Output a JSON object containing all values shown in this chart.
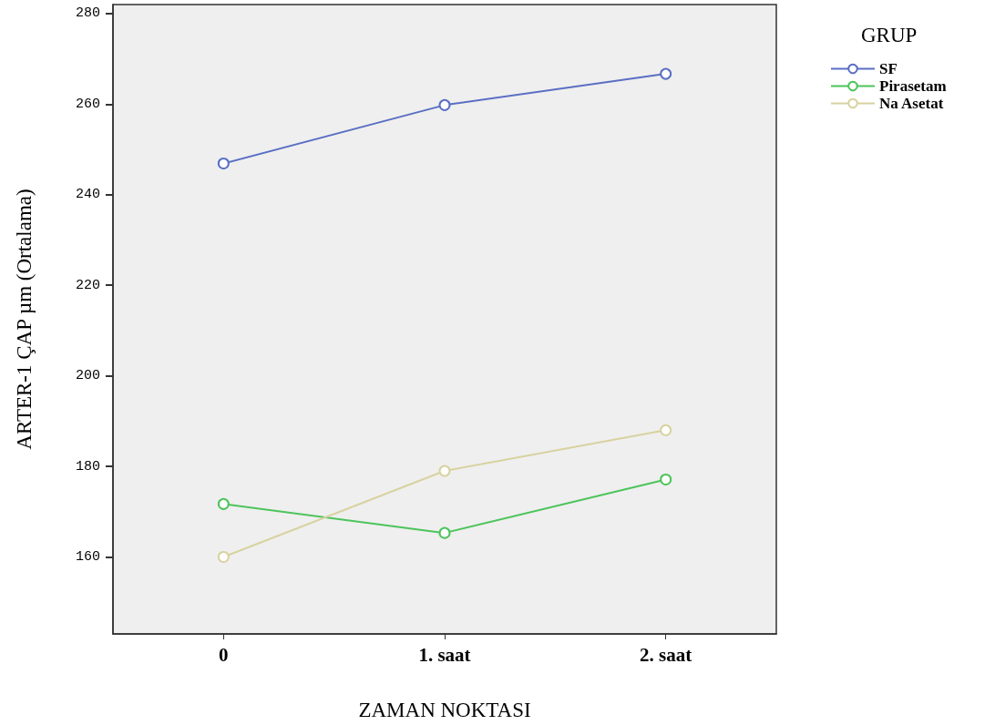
{
  "chart_data": {
    "type": "line",
    "xlabel": "ZAMAN NOKTASI",
    "ylabel": "ARTER-1 ÇAP µm (Ortalama)",
    "legend_title": "GRUP",
    "categories": [
      "0",
      "1. saat",
      "2. saat"
    ],
    "series": [
      {
        "name": "SF",
        "color": "#5a6fc4",
        "values": [
          246.9,
          259.8,
          266.7
        ]
      },
      {
        "name": "Pirasetam",
        "color": "#4cc45a",
        "values": [
          171.7,
          165.3,
          177.1
        ]
      },
      {
        "name": "Na Asetat",
        "color": "#d8d2a0",
        "values": [
          160,
          179,
          188
        ]
      }
    ],
    "ylim": [
      143,
      282
    ],
    "yticks": [
      160,
      180,
      200,
      220,
      240,
      260,
      280
    ],
    "grid": false,
    "legend": "top right",
    "marker": "circle",
    "line_style": "solid"
  }
}
